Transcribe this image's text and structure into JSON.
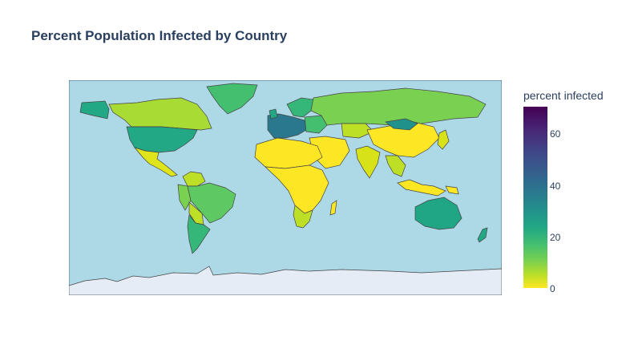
{
  "title": "Percent Population Infected by Country",
  "colorbar": {
    "title": "percent infected",
    "ticks": [
      "60",
      "40",
      "20",
      "0"
    ],
    "colorscale": "viridis",
    "range": [
      0,
      70
    ]
  },
  "map": {
    "projection": "equirectangular",
    "ocean_color": "#add8e6",
    "land_default_color": "#e5ecf6",
    "border_color": "#506784"
  },
  "chart_data": {
    "type": "choropleth",
    "title": "Percent Population Infected by Country",
    "colorbar_title": "percent infected",
    "range": [
      0,
      70
    ],
    "regions": [
      {
        "name": "Canada",
        "value": 12
      },
      {
        "name": "United States",
        "value": 30
      },
      {
        "name": "Mexico",
        "value": 5
      },
      {
        "name": "Greenland",
        "value": 20
      },
      {
        "name": "Brazil",
        "value": 17
      },
      {
        "name": "Argentina",
        "value": 22
      },
      {
        "name": "Western Europe",
        "value": 45
      },
      {
        "name": "Russia",
        "value": 14
      },
      {
        "name": "China",
        "value": 1
      },
      {
        "name": "India",
        "value": 3
      },
      {
        "name": "Africa",
        "value": 1
      },
      {
        "name": "Australia",
        "value": 30
      },
      {
        "name": "Antarctica",
        "value": null
      }
    ]
  }
}
